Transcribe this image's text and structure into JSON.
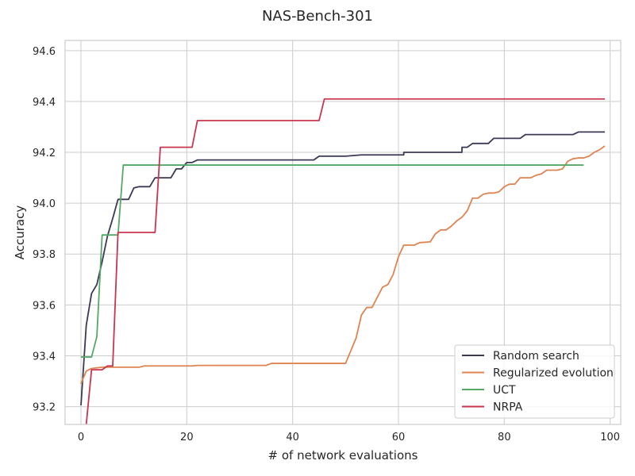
{
  "chart_data": {
    "type": "line",
    "title": "NAS-Bench-301",
    "xlabel": "# of network evaluations",
    "ylabel": "Accuracy",
    "xlim": [
      -3,
      102
    ],
    "ylim": [
      93.13,
      94.64
    ],
    "xticks": [
      0,
      20,
      40,
      60,
      80,
      100
    ],
    "yticks": [
      93.2,
      93.4,
      93.6,
      93.8,
      94.0,
      94.2,
      94.4,
      94.6
    ],
    "grid": true,
    "legend_position": "lower-right",
    "series": [
      {
        "name": "Random search",
        "color": "#3a3a55",
        "points": [
          [
            0,
            93.205
          ],
          [
            1,
            93.52
          ],
          [
            2,
            93.645
          ],
          [
            3,
            93.68
          ],
          [
            4,
            93.77
          ],
          [
            5,
            93.87
          ],
          [
            6,
            93.94
          ],
          [
            7,
            94.015
          ],
          [
            8,
            94.015
          ],
          [
            9,
            94.015
          ],
          [
            10,
            94.06
          ],
          [
            11,
            94.065
          ],
          [
            12,
            94.065
          ],
          [
            13,
            94.065
          ],
          [
            14,
            94.1
          ],
          [
            15,
            94.1
          ],
          [
            16,
            94.1
          ],
          [
            17,
            94.1
          ],
          [
            18,
            94.135
          ],
          [
            19,
            94.135
          ],
          [
            20,
            94.16
          ],
          [
            21,
            94.16
          ],
          [
            22,
            94.17
          ],
          [
            44,
            94.17
          ],
          [
            45,
            94.185
          ],
          [
            50,
            94.185
          ],
          [
            53,
            94.19
          ],
          [
            61,
            94.19
          ],
          [
            61,
            94.2
          ],
          [
            72,
            94.2
          ],
          [
            72,
            94.22
          ],
          [
            73,
            94.22
          ],
          [
            74,
            94.235
          ],
          [
            77,
            94.235
          ],
          [
            78,
            94.255
          ],
          [
            83,
            94.255
          ],
          [
            84,
            94.27
          ],
          [
            93,
            94.27
          ],
          [
            94,
            94.28
          ],
          [
            99,
            94.28
          ]
        ]
      },
      {
        "name": "Regularized evolution",
        "color": "#dd8452",
        "points": [
          [
            0,
            93.29
          ],
          [
            1,
            93.34
          ],
          [
            2,
            93.35
          ],
          [
            4,
            93.355
          ],
          [
            11,
            93.355
          ],
          [
            12,
            93.36
          ],
          [
            21,
            93.36
          ],
          [
            22,
            93.362
          ],
          [
            35,
            93.362
          ],
          [
            36,
            93.37
          ],
          [
            50,
            93.37
          ],
          [
            51,
            93.42
          ],
          [
            52,
            93.47
          ],
          [
            53,
            93.56
          ],
          [
            54,
            93.59
          ],
          [
            55,
            93.59
          ],
          [
            56,
            93.63
          ],
          [
            57,
            93.67
          ],
          [
            58,
            93.68
          ],
          [
            59,
            93.72
          ],
          [
            60,
            93.79
          ],
          [
            61,
            93.835
          ],
          [
            62,
            93.835
          ],
          [
            63,
            93.835
          ],
          [
            64,
            93.845
          ],
          [
            66,
            93.848
          ],
          [
            67,
            93.88
          ],
          [
            68,
            93.895
          ],
          [
            69,
            93.895
          ],
          [
            70,
            93.91
          ],
          [
            71,
            93.93
          ],
          [
            72,
            93.945
          ],
          [
            73,
            93.97
          ],
          [
            74,
            94.02
          ],
          [
            75,
            94.02
          ],
          [
            76,
            94.035
          ],
          [
            77,
            94.04
          ],
          [
            78,
            94.04
          ],
          [
            79,
            94.045
          ],
          [
            80,
            94.065
          ],
          [
            81,
            94.075
          ],
          [
            82,
            94.075
          ],
          [
            83,
            94.1
          ],
          [
            85,
            94.1
          ],
          [
            86,
            94.11
          ],
          [
            87,
            94.115
          ],
          [
            88,
            94.13
          ],
          [
            89,
            94.13
          ],
          [
            90,
            94.13
          ],
          [
            91,
            94.135
          ],
          [
            92,
            94.165
          ],
          [
            93,
            94.175
          ],
          [
            94,
            94.178
          ],
          [
            95,
            94.178
          ],
          [
            96,
            94.185
          ],
          [
            97,
            94.2
          ],
          [
            98,
            94.21
          ],
          [
            99,
            94.225
          ]
        ]
      },
      {
        "name": "UCT",
        "color": "#55a868",
        "points": [
          [
            0,
            93.395
          ],
          [
            1,
            93.395
          ],
          [
            2,
            93.395
          ],
          [
            3,
            93.475
          ],
          [
            4,
            93.875
          ],
          [
            5,
            93.875
          ],
          [
            6,
            93.875
          ],
          [
            7,
            93.875
          ],
          [
            8,
            94.15
          ],
          [
            95,
            94.15
          ]
        ]
      },
      {
        "name": "NRPA",
        "color": "#c9354f",
        "points": [
          [
            1,
            93.13
          ],
          [
            2,
            93.345
          ],
          [
            4,
            93.345
          ],
          [
            5,
            93.36
          ],
          [
            6,
            93.36
          ],
          [
            7,
            93.885
          ],
          [
            14,
            93.885
          ],
          [
            15,
            94.22
          ],
          [
            21,
            94.22
          ],
          [
            22,
            94.325
          ],
          [
            45,
            94.325
          ],
          [
            46,
            94.41
          ],
          [
            99,
            94.41
          ]
        ]
      }
    ]
  }
}
